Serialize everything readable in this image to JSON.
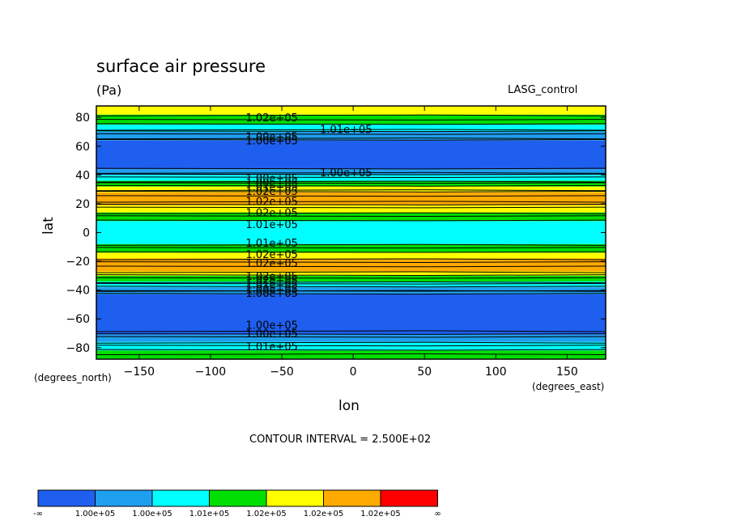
{
  "header": {
    "title": "surface air pressure",
    "units": "(Pa)",
    "run_name": "LASG_control"
  },
  "axes": {
    "ylabel": "lat",
    "xlabel": "lon",
    "y_units": "(degrees_north)",
    "x_units": "(degrees_east)"
  },
  "contour_interval_text": "CONTOUR INTERVAL = 2.500E+02",
  "colors": {
    "c1": "#1f5fef",
    "c2": "#1f9fef",
    "c3": "#00ffff",
    "c4": "#00df00",
    "c5": "#ffff00",
    "c6": "#ffaa00",
    "c7": "#ff0000"
  },
  "chart_data": {
    "type": "heatmap",
    "title": "surface air pressure",
    "xlabel": "lon",
    "ylabel": "lat",
    "xlim": [
      -180,
      177
    ],
    "ylim": [
      -88,
      88
    ],
    "x_ticks": [
      -150,
      -100,
      -50,
      0,
      50,
      100,
      150
    ],
    "y_ticks": [
      80,
      60,
      40,
      20,
      0,
      -20,
      -40,
      -60,
      -80
    ],
    "bands": [
      {
        "lat_from": -88,
        "lat_to": -82,
        "level": 4
      },
      {
        "lat_from": -82,
        "lat_to": -76,
        "level": 3
      },
      {
        "lat_from": -76,
        "lat_to": -71,
        "level": 2
      },
      {
        "lat_from": -71,
        "lat_to": -43,
        "level": 1
      },
      {
        "lat_from": -43,
        "lat_to": -38,
        "level": 2
      },
      {
        "lat_from": -38,
        "lat_to": -34,
        "level": 3
      },
      {
        "lat_from": -34,
        "lat_to": -30,
        "level": 4
      },
      {
        "lat_from": -30,
        "lat_to": -27,
        "level": 5
      },
      {
        "lat_from": -27,
        "lat_to": -18,
        "level": 6
      },
      {
        "lat_from": -18,
        "lat_to": -14,
        "level": 5
      },
      {
        "lat_from": -14,
        "lat_to": -8,
        "level": 4
      },
      {
        "lat_from": -8,
        "lat_to": 8,
        "level": 3
      },
      {
        "lat_from": 8,
        "lat_to": 14,
        "level": 4
      },
      {
        "lat_from": 14,
        "lat_to": 19,
        "level": 5
      },
      {
        "lat_from": 19,
        "lat_to": 28,
        "level": 6
      },
      {
        "lat_from": 28,
        "lat_to": 32,
        "level": 5
      },
      {
        "lat_from": 32,
        "lat_to": 36,
        "level": 4
      },
      {
        "lat_from": 36,
        "lat_to": 40,
        "level": 3
      },
      {
        "lat_from": 40,
        "lat_to": 44,
        "level": 2
      },
      {
        "lat_from": 44,
        "lat_to": 64,
        "level": 1
      },
      {
        "lat_from": 64,
        "lat_to": 70,
        "level": 2
      },
      {
        "lat_from": 70,
        "lat_to": 75,
        "level": 3
      },
      {
        "lat_from": 75,
        "lat_to": 82,
        "level": 4
      },
      {
        "lat_from": 82,
        "lat_to": 88,
        "level": 5
      }
    ],
    "contour_lats": [
      -84,
      -82,
      -79,
      -76,
      -73,
      -71,
      -68,
      -43,
      -41,
      -40,
      -38,
      -36,
      -34,
      -32,
      -30,
      -27,
      -24,
      -21,
      -18,
      -14,
      -11,
      -8,
      8,
      11,
      14,
      17,
      19,
      22,
      25,
      28,
      30,
      32,
      34,
      36,
      38,
      40,
      42,
      44,
      64,
      66,
      68,
      70,
      72,
      75,
      78,
      82
    ],
    "contour_labels": [
      {
        "text": "1.02e+05",
        "lon": -57,
        "lat": 80
      },
      {
        "text": "1.01e+05",
        "lon": -5,
        "lat": 72
      },
      {
        "text": "1.00e+05",
        "lon": -57,
        "lat": 67
      },
      {
        "text": "1.00e+05",
        "lon": -57,
        "lat": 64
      },
      {
        "text": "1.00e+05",
        "lon": -5,
        "lat": 42
      },
      {
        "text": "1.00e+05",
        "lon": -57,
        "lat": 38
      },
      {
        "text": "1.00e+05",
        "lon": -57,
        "lat": 35
      },
      {
        "text": "1.01e+05",
        "lon": -57,
        "lat": 32
      },
      {
        "text": "1.02e+05",
        "lon": -57,
        "lat": 29
      },
      {
        "text": "1.02e+05",
        "lon": -57,
        "lat": 22
      },
      {
        "text": "1.02e+05",
        "lon": -57,
        "lat": 14
      },
      {
        "text": "1.01e+05",
        "lon": -57,
        "lat": 6
      },
      {
        "text": "1.01e+05",
        "lon": -57,
        "lat": -7
      },
      {
        "text": "1.02e+05",
        "lon": -57,
        "lat": -15
      },
      {
        "text": "1.02e+05",
        "lon": -57,
        "lat": -21
      },
      {
        "text": "1.02e+05",
        "lon": -57,
        "lat": -30
      },
      {
        "text": "1.02e+05",
        "lon": -57,
        "lat": -33
      },
      {
        "text": "1.01e+05",
        "lon": -57,
        "lat": -36
      },
      {
        "text": "1.00e+05",
        "lon": -57,
        "lat": -39
      },
      {
        "text": "1.00e+05",
        "lon": -57,
        "lat": -42
      },
      {
        "text": "1.00e+05",
        "lon": -57,
        "lat": -64
      },
      {
        "text": "1.00e+05",
        "lon": -57,
        "lat": -70
      },
      {
        "text": "1.01e+05",
        "lon": -57,
        "lat": -79
      }
    ],
    "legend": {
      "labels": [
        "-∞",
        "1.00e+05",
        "1.00e+05",
        "1.01e+05",
        "1.02e+05",
        "1.02e+05",
        "1.02e+05",
        "∞"
      ]
    }
  }
}
